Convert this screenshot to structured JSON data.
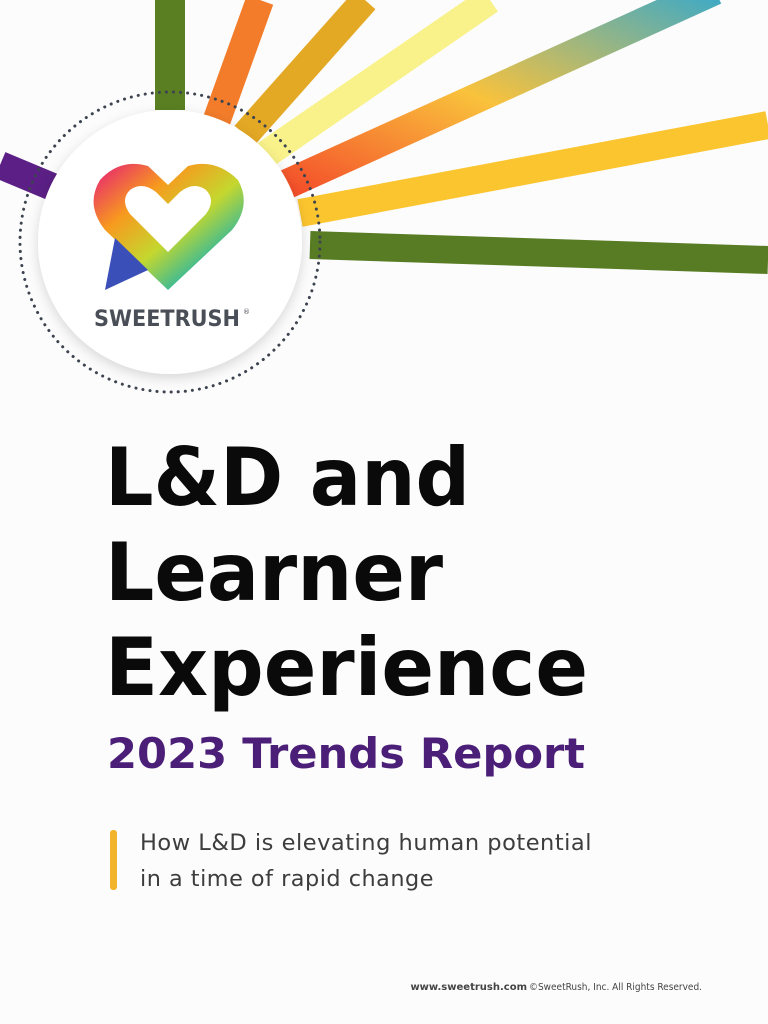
{
  "logo": {
    "name": "SWEETRUSH",
    "mark": "®"
  },
  "title_lines": [
    "L&D and",
    "Learner",
    "Experience"
  ],
  "subtitle": "2023 Trends Report",
  "tagline_lines": [
    "How L&D is elevating human potential",
    "in a time of rapid change"
  ],
  "footer": {
    "link": "www.sweetrush.com",
    "copyright": "©SweetRush, Inc. All Rights Reserved."
  }
}
